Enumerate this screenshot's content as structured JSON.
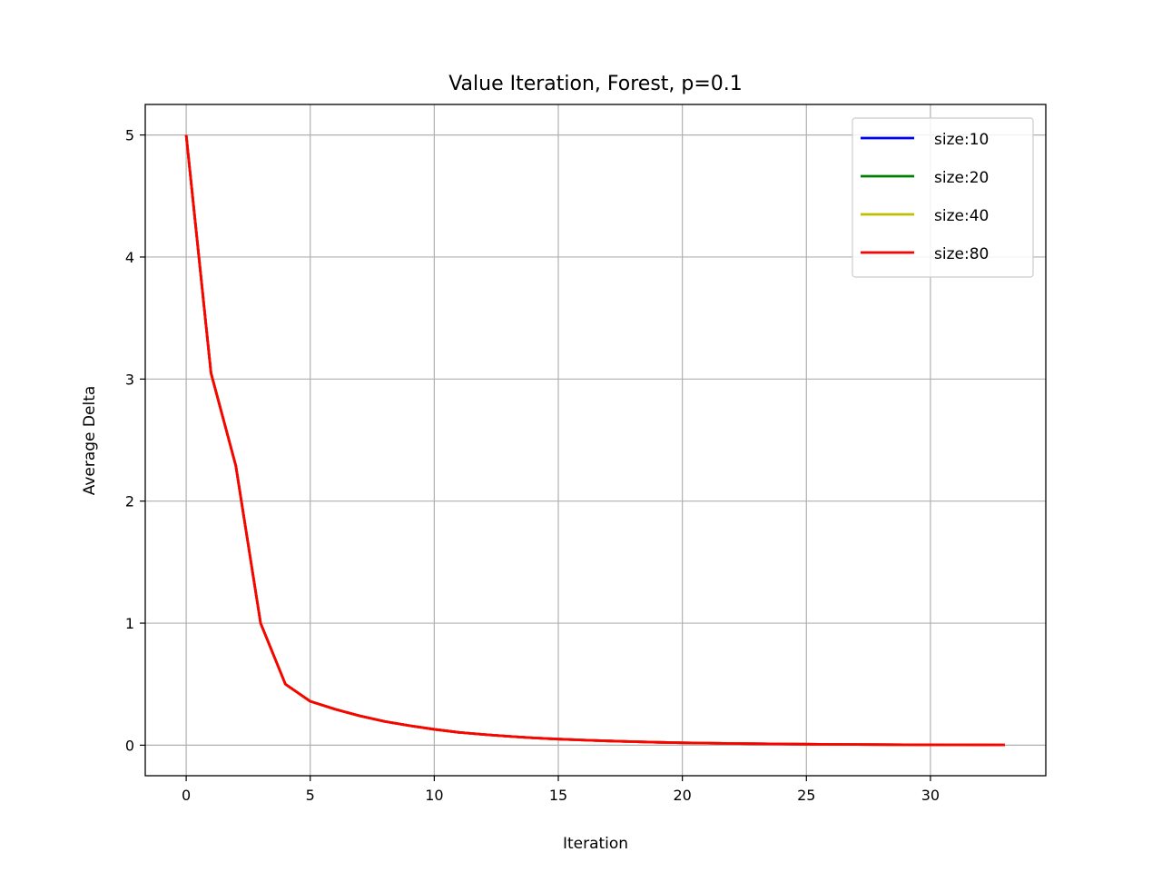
{
  "chart_data": {
    "type": "line",
    "title": "Value Iteration, Forest, p=0.1",
    "xlabel": "Iteration",
    "ylabel": "Average Delta",
    "xlim": [
      -1.65,
      34.65
    ],
    "ylim": [
      -0.25,
      5.25
    ],
    "xticks": [
      0,
      5,
      10,
      15,
      20,
      25,
      30
    ],
    "yticks": [
      0,
      1,
      2,
      3,
      4,
      5
    ],
    "grid": true,
    "legend_position": "top-right",
    "x": [
      0,
      1,
      2,
      3,
      4,
      5,
      6,
      7,
      8,
      9,
      10,
      11,
      12,
      13,
      14,
      15,
      16,
      17,
      18,
      19,
      20,
      21,
      22,
      23,
      24,
      25,
      26,
      27,
      28,
      29,
      30,
      31,
      32,
      33
    ],
    "series": [
      {
        "name": "size:10",
        "color": "#0000ff",
        "values": [
          5.0,
          3.05,
          2.29,
          1.0,
          0.5,
          0.36,
          0.295,
          0.24,
          0.195,
          0.16,
          0.13,
          0.105,
          0.088,
          0.073,
          0.06,
          0.05,
          0.042,
          0.035,
          0.029,
          0.024,
          0.02,
          0.017,
          0.014,
          0.012,
          0.01,
          0.008,
          0.007,
          0.006,
          0.005,
          0.004,
          0.0035,
          0.003,
          0.0025,
          0.002
        ]
      },
      {
        "name": "size:20",
        "color": "#008000",
        "values": [
          5.0,
          3.05,
          2.29,
          1.0,
          0.5,
          0.36,
          0.295,
          0.24,
          0.195,
          0.16,
          0.13,
          0.105,
          0.088,
          0.073,
          0.06,
          0.05,
          0.042,
          0.035,
          0.029,
          0.024,
          0.02,
          0.017,
          0.014,
          0.012,
          0.01,
          0.008,
          0.007,
          0.006,
          0.005,
          0.004,
          0.0035,
          0.003,
          0.0025,
          0.002
        ]
      },
      {
        "name": "size:40",
        "color": "#bfbf00",
        "values": [
          5.0,
          3.05,
          2.29,
          1.0,
          0.5,
          0.36,
          0.295,
          0.24,
          0.195,
          0.16,
          0.13,
          0.105,
          0.088,
          0.073,
          0.06,
          0.05,
          0.042,
          0.035,
          0.029,
          0.024,
          0.02,
          0.017,
          0.014,
          0.012,
          0.01,
          0.008,
          0.007,
          0.006,
          0.005,
          0.004,
          0.0035,
          0.003,
          0.0025,
          0.002
        ]
      },
      {
        "name": "size:80",
        "color": "#ff0000",
        "values": [
          5.0,
          3.05,
          2.29,
          1.0,
          0.5,
          0.36,
          0.295,
          0.24,
          0.195,
          0.16,
          0.13,
          0.105,
          0.088,
          0.073,
          0.06,
          0.05,
          0.042,
          0.035,
          0.029,
          0.024,
          0.02,
          0.017,
          0.014,
          0.012,
          0.01,
          0.008,
          0.007,
          0.006,
          0.005,
          0.004,
          0.0035,
          0.003,
          0.0025,
          0.002
        ]
      }
    ]
  }
}
